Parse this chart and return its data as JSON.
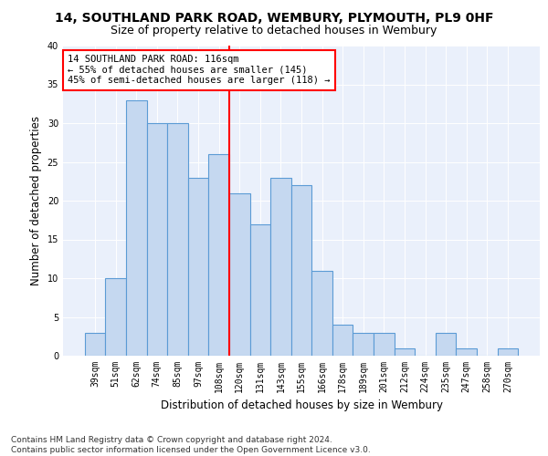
{
  "title1": "14, SOUTHLAND PARK ROAD, WEMBURY, PLYMOUTH, PL9 0HF",
  "title2": "Size of property relative to detached houses in Wembury",
  "xlabel": "Distribution of detached houses by size in Wembury",
  "ylabel": "Number of detached properties",
  "categories": [
    "39sqm",
    "51sqm",
    "62sqm",
    "74sqm",
    "85sqm",
    "97sqm",
    "108sqm",
    "120sqm",
    "131sqm",
    "143sqm",
    "155sqm",
    "166sqm",
    "178sqm",
    "189sqm",
    "201sqm",
    "212sqm",
    "224sqm",
    "235sqm",
    "247sqm",
    "258sqm",
    "270sqm"
  ],
  "values": [
    3,
    10,
    33,
    30,
    30,
    23,
    26,
    21,
    17,
    23,
    22,
    11,
    4,
    3,
    3,
    1,
    0,
    3,
    1,
    0,
    1
  ],
  "bar_color": "#c5d8f0",
  "bar_edge_color": "#5b9bd5",
  "annotation_text": "14 SOUTHLAND PARK ROAD: 116sqm\n← 55% of detached houses are smaller (145)\n45% of semi-detached houses are larger (118) →",
  "annotation_box_color": "white",
  "annotation_box_edge_color": "red",
  "vline_color": "red",
  "footer": "Contains HM Land Registry data © Crown copyright and database right 2024.\nContains public sector information licensed under the Open Government Licence v3.0.",
  "ylim": [
    0,
    40
  ],
  "yticks": [
    0,
    5,
    10,
    15,
    20,
    25,
    30,
    35,
    40
  ],
  "bg_color": "#eaf0fb",
  "title1_fontsize": 10,
  "title2_fontsize": 9,
  "xlabel_fontsize": 8.5,
  "ylabel_fontsize": 8.5,
  "tick_fontsize": 7,
  "footer_fontsize": 6.5,
  "annotation_fontsize": 7.5
}
